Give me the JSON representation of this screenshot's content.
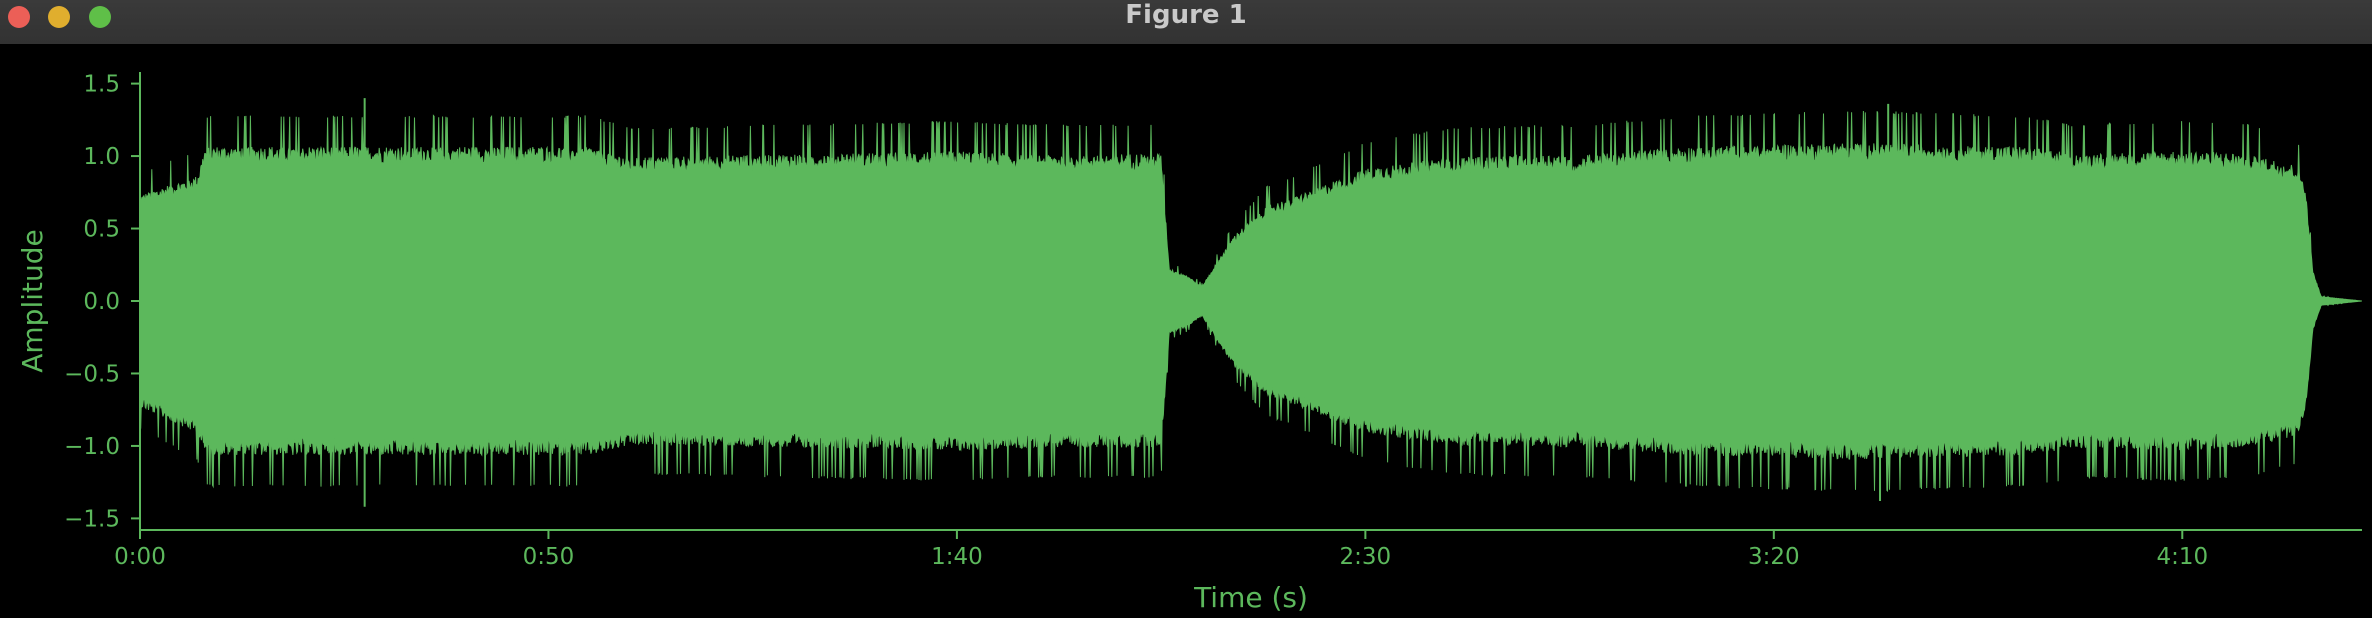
{
  "window": {
    "title": "Figure 1"
  },
  "colors": {
    "background": "#000000",
    "waveform": "#5cb85c",
    "axis": "#5cb85c",
    "titlebar": "#353535"
  },
  "chart_data": {
    "type": "area",
    "title": "",
    "xlabel": "Time (s)",
    "ylabel": "Amplitude",
    "xlim": [
      0,
      272
    ],
    "ylim": [
      -1.58,
      1.58
    ],
    "xticks": [
      0,
      50,
      100,
      150,
      200,
      250
    ],
    "xtick_labels": [
      "0:00",
      "0:50",
      "1:40",
      "2:30",
      "3:20",
      "4:10"
    ],
    "yticks": [
      1.5,
      1.0,
      0.5,
      0.0,
      -0.5,
      -1.0,
      -1.5
    ],
    "ytick_labels": [
      "1.5",
      "1.0",
      "0.5",
      "0.0",
      "−0.5",
      "−1.0",
      "−1.5"
    ],
    "grid": false,
    "legend": "none",
    "envelope": {
      "time_s": [
        0,
        3,
        7,
        8,
        28,
        35,
        55,
        60,
        80,
        100,
        110,
        125,
        126,
        128,
        130,
        132,
        134,
        138,
        141,
        150,
        160,
        175,
        176,
        177,
        190,
        210,
        230,
        235,
        236,
        250,
        258,
        264,
        265,
        266,
        267,
        272
      ],
      "upper": [
        0.72,
        0.78,
        0.85,
        1.05,
        1.05,
        1.05,
        1.05,
        0.98,
        1.0,
        1.02,
        1.0,
        1.0,
        0.22,
        0.18,
        0.1,
        0.28,
        0.45,
        0.65,
        0.7,
        0.9,
        0.98,
        1.0,
        0.95,
        1.0,
        1.05,
        1.08,
        1.05,
        1.02,
        1.0,
        1.02,
        1.0,
        0.92,
        0.8,
        0.2,
        0.03,
        0.0
      ],
      "lower": [
        -0.72,
        -0.8,
        -0.9,
        -1.05,
        -1.05,
        -1.05,
        -1.05,
        -0.98,
        -1.0,
        -1.02,
        -1.0,
        -1.0,
        -0.22,
        -0.18,
        -0.1,
        -0.28,
        -0.45,
        -0.65,
        -0.7,
        -0.9,
        -0.98,
        -1.0,
        -0.95,
        -1.0,
        -1.05,
        -1.08,
        -1.05,
        -1.02,
        -1.0,
        -1.02,
        -1.0,
        -0.92,
        -0.8,
        -0.2,
        -0.03,
        0.0
      ]
    },
    "peak_spikes": [
      {
        "time_s": 27.5,
        "value": 1.4
      },
      {
        "time_s": 27.5,
        "value": -1.42
      },
      {
        "time_s": 214,
        "value": 1.36
      },
      {
        "time_s": 213,
        "value": -1.38
      }
    ]
  }
}
